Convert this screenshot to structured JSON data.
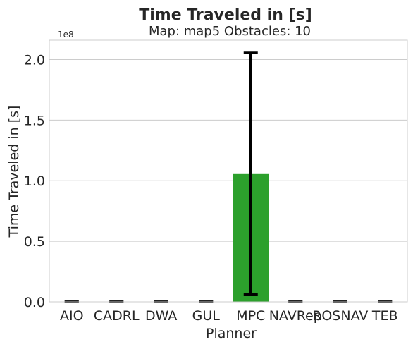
{
  "chart_data": {
    "type": "bar",
    "title": "Time Traveled in [s]",
    "subtitle": "Map: map5 Obstacles: 10",
    "xlabel": "Planner",
    "ylabel": "Time Traveled in [s]",
    "y_offset_label": "1e8",
    "categories": [
      "AIO",
      "CADRL",
      "DWA",
      "GUL",
      "MPC",
      "NAVRep",
      "ROSNAV",
      "TEB"
    ],
    "values": [
      0,
      0,
      0,
      0,
      1.055,
      0,
      0,
      0
    ],
    "error_low": [
      0,
      0,
      0,
      0,
      0.06,
      0,
      0,
      0
    ],
    "error_high": [
      0,
      0,
      0,
      0,
      2.055,
      0,
      0,
      0
    ],
    "bar_colors": [
      "#1f77b4",
      "#ff7f0e",
      "#2ca02c",
      "#d62728",
      "#2ca02c",
      "#8c564b",
      "#e377c2",
      "#7f7f7f"
    ],
    "yticks": [
      "0.0",
      "0.5",
      "1.0",
      "1.5",
      "2.0"
    ],
    "ytick_values": [
      0,
      0.5,
      1.0,
      1.5,
      2.0
    ],
    "ylim": [
      0,
      2.16
    ],
    "grid": true,
    "grid_color": "#cccccc",
    "error_color": "#000000"
  }
}
